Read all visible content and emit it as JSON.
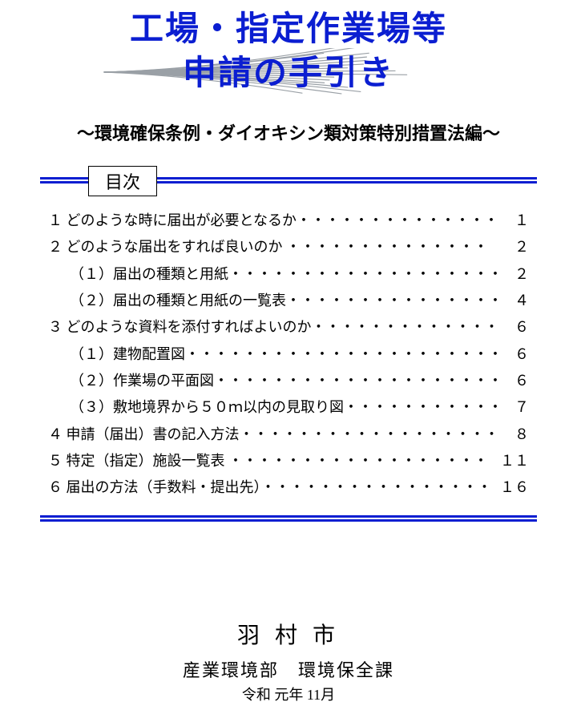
{
  "colors": {
    "title": "#0b1ed1",
    "rule": "#0b1ed1",
    "decoration": "#9aa0a6",
    "text": "#000000",
    "background": "#ffffff"
  },
  "title": {
    "line1": "工場・指定作業場等",
    "line2": "申請の手引き",
    "subtitle": "～環境確保条例・ダイオキシン類対策特別措置法編～",
    "fontsize": 42,
    "subtitle_fontsize": 22
  },
  "toc": {
    "label": "目次",
    "label_fontsize": 22,
    "item_fontsize": 18,
    "items": [
      {
        "text": "１ どのような時に届出が必要となるか・・・・・・・・・・・・・・",
        "page": "１"
      },
      {
        "text": "２ どのような届出をすれば良いのか ・・・・・・・・・・・・・・",
        "page": "２"
      },
      {
        "text": "　　（１）届出の種類と用紙・・・・・・・・・・・・・・・・・・・",
        "page": "２"
      },
      {
        "text": "　　（２）届出の種類と用紙の一覧表・・・・・・・・・・・・・・・",
        "page": "４"
      },
      {
        "text": "３ どのような資料を添付すればよいのか・・・・・・・・・・・・・",
        "page": "６"
      },
      {
        "text": "　　（１）建物配置図・・・・・・・・・・・・・・・・・・・・・・",
        "page": "６"
      },
      {
        "text": "　　（２）作業場の平面図・・・・・・・・・・・・・・・・・・・・",
        "page": "６"
      },
      {
        "text": "　　（３）敷地境界から５０ｍ以内の見取り図・・・・・・・・・・・",
        "page": "７"
      },
      {
        "text": "４ 申請（届出）書の記入方法・・・・・・・・・・・・・・・・・・",
        "page": "８"
      },
      {
        "text": "５ 特定（指定）施設一覧表 ・・・・・・・・・・・・・・・・・・",
        "page": "１１"
      },
      {
        "text": "６ 届出の方法（手数料・提出先）・・・・・・・・・・・・・・・・",
        "page": "１６"
      }
    ]
  },
  "footer": {
    "org": "羽 村 市",
    "dept": "産業環境部　環境保全課",
    "date": "令和 元年 11月"
  }
}
